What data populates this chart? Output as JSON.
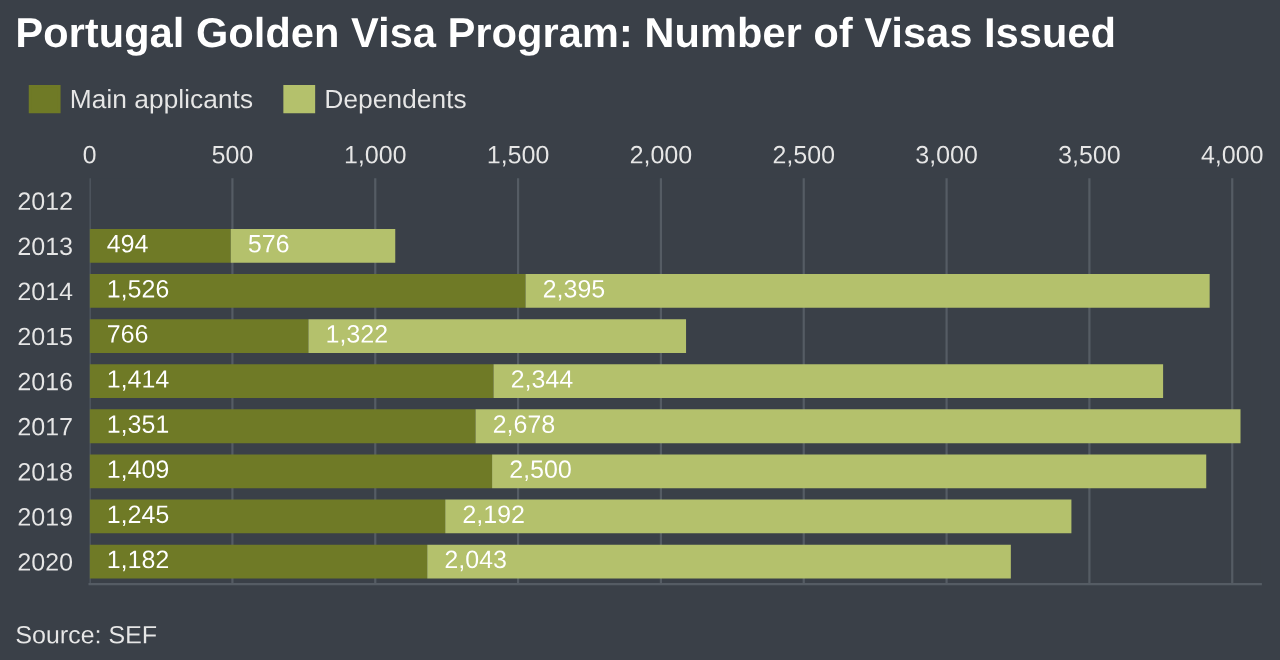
{
  "chart_data": {
    "type": "bar",
    "orientation": "horizontal",
    "stacked": true,
    "title": "Portugal Golden Visa Program: Number of Visas Issued",
    "categories": [
      "2012",
      "2013",
      "2014",
      "2015",
      "2016",
      "2017",
      "2018",
      "2019",
      "2020"
    ],
    "series": [
      {
        "name": "Main applicants",
        "color": "#6f7a26",
        "values": [
          null,
          494,
          1526,
          766,
          1414,
          1351,
          1409,
          1245,
          1182
        ],
        "value_labels": [
          null,
          "494",
          "1,526",
          "766",
          "1,414",
          "1,351",
          "1,409",
          "1,245",
          "1,182"
        ]
      },
      {
        "name": "Dependents",
        "color": "#b4c16c",
        "values": [
          null,
          576,
          2395,
          1322,
          2344,
          2678,
          2500,
          2192,
          2043
        ],
        "value_labels": [
          null,
          "576",
          "2,395",
          "1,322",
          "2,344",
          "2,678",
          "2,500",
          "2,192",
          "2,043"
        ]
      }
    ],
    "xlim": [
      0,
      4100
    ],
    "xticks": [
      0,
      500,
      {
        "value": 1000,
        "label": "1,000"
      },
      {
        "value": 1500,
        "label": "1,500"
      },
      {
        "value": 2000,
        "label": "2,000"
      },
      {
        "value": 2500,
        "label": "2,500"
      },
      {
        "value": 3000,
        "label": "3,000"
      },
      {
        "value": 3500,
        "label": "3,500"
      },
      {
        "value": 4000,
        "label": "4,000"
      }
    ],
    "grid": "x",
    "legend": "top left",
    "annotations": [
      "Source: SEF"
    ]
  }
}
